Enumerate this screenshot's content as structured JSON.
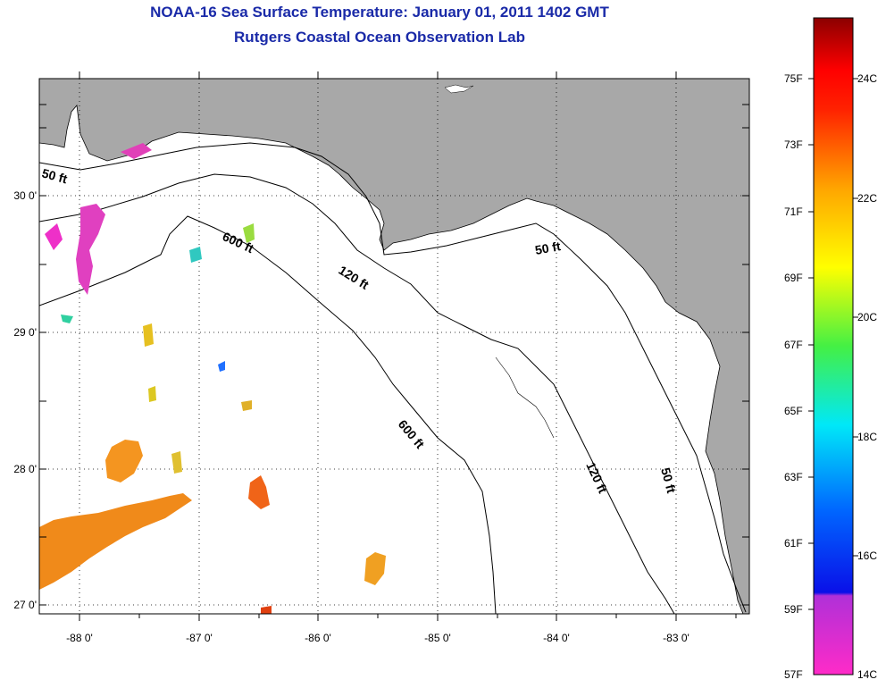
{
  "header": {
    "title": "NOAA-16 Sea Surface Temperature:  January 01, 2011 1402 GMT",
    "subtitle": "Rutgers Coastal Ocean Observation Lab"
  },
  "map": {
    "region": "Gulf of Mexico, Florida Panhandle",
    "land_color": "#a8a8a8",
    "water_color": "#ffffff",
    "grid": "dotted",
    "lat_labels": [
      "30 0'",
      "29 0'",
      "28 0'",
      "27 0'"
    ],
    "lon_labels": [
      "-88 0'",
      "-87 0'",
      "-86 0'",
      "-85 0'",
      "-84 0'",
      "-83 0'"
    ],
    "contour_labels": [
      "50 ft",
      "600 ft",
      "120 ft",
      "50 ft",
      "600 ft",
      "120 ft",
      "50 ft"
    ]
  },
  "colorbar": {
    "fahrenheit_labels": [
      "75F",
      "73F",
      "71F",
      "69F",
      "67F",
      "65F",
      "63F",
      "61F",
      "59F",
      "57F"
    ],
    "celsius_labels": [
      "24C",
      "22C",
      "20C",
      "18C",
      "16C",
      "14C"
    ],
    "colors": [
      "#ff2bc8",
      "#8a2be2",
      "#0a1af0",
      "#00a8ff",
      "#00f0f0",
      "#44f044",
      "#ffff00",
      "#ffa500",
      "#ff4400",
      "#ff0000",
      "#8b0000"
    ]
  }
}
